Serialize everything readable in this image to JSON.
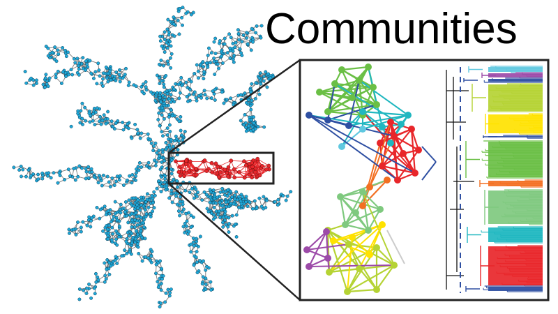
{
  "title": "Communities",
  "palette": {
    "node_fill": "#1fa8d8",
    "node_stroke": "#0b3a52",
    "edge": "#7a7a7a",
    "highlight": "#e8262a",
    "frame": "#222222"
  },
  "network": {
    "highlighted_community_color": "#e8262a"
  },
  "zoom_inset": {
    "communities": [
      {
        "color": "#6abf45"
      },
      {
        "color": "#20b7c0"
      },
      {
        "color": "#e8262a"
      },
      {
        "color": "#f36f21"
      },
      {
        "color": "#7fc97f"
      },
      {
        "color": "#b5d334"
      },
      {
        "color": "#ffe200"
      },
      {
        "color": "#9c4aa8"
      },
      {
        "color": "#2e4fa2"
      },
      {
        "color": "#5fc8e0"
      }
    ]
  },
  "dendrogram": {
    "bands": [
      {
        "color": "#5fc8e0"
      },
      {
        "color": "#9c4aa8"
      },
      {
        "color": "#2e4fa2"
      },
      {
        "color": "#b5d334"
      },
      {
        "color": "#ffe200"
      },
      {
        "color": "#2e4fa2"
      },
      {
        "color": "#6abf45"
      },
      {
        "color": "#f36f21"
      },
      {
        "color": "#7fc97f"
      },
      {
        "color": "#20b7c0"
      },
      {
        "color": "#e8262a"
      },
      {
        "color": "#2e4fa2"
      }
    ]
  }
}
